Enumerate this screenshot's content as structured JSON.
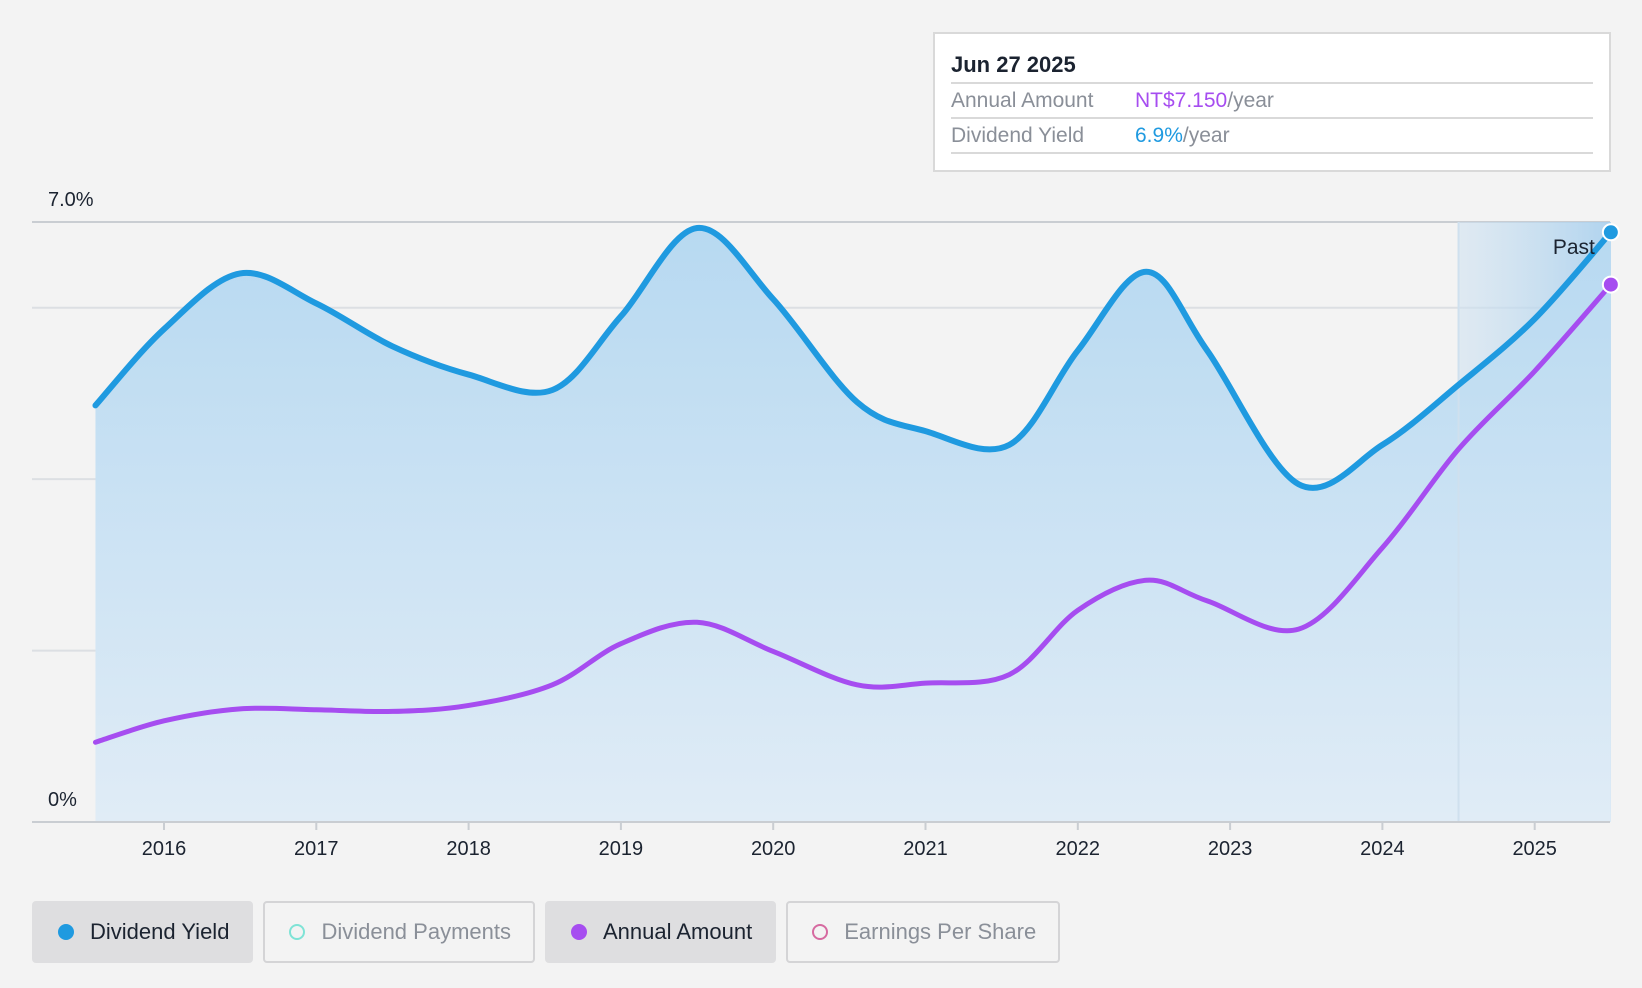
{
  "tooltip": {
    "date": "Jun 27 2025",
    "rows": [
      {
        "label": "Annual Amount",
        "value": "NT$7.150",
        "unit": "/year",
        "color": "#a64df0"
      },
      {
        "label": "Dividend Yield",
        "value": "6.9%",
        "unit": "/year",
        "color": "#1f9ae0"
      }
    ]
  },
  "chart_data": {
    "type": "area",
    "x_ticks": [
      "2016",
      "2017",
      "2018",
      "2019",
      "2020",
      "2021",
      "2022",
      "2023",
      "2024",
      "2025"
    ],
    "y_ticks": [
      "0%",
      "7.0%"
    ],
    "ylim": [
      0,
      7.0
    ],
    "xlim": [
      2015.55,
      2025.5
    ],
    "grid": true,
    "past_region_start": 2024.5,
    "past_label": "Past",
    "series": [
      {
        "name": "Dividend Yield",
        "color": "#1f9ae0",
        "fill": true,
        "points": [
          [
            2015.55,
            4.86
          ],
          [
            2016.0,
            5.75
          ],
          [
            2016.5,
            6.4
          ],
          [
            2017.0,
            6.05
          ],
          [
            2017.5,
            5.55
          ],
          [
            2018.0,
            5.22
          ],
          [
            2018.55,
            5.04
          ],
          [
            2019.0,
            5.9
          ],
          [
            2019.5,
            6.93
          ],
          [
            2020.0,
            6.1
          ],
          [
            2020.55,
            4.9
          ],
          [
            2021.0,
            4.56
          ],
          [
            2021.55,
            4.4
          ],
          [
            2022.0,
            5.5
          ],
          [
            2022.45,
            6.42
          ],
          [
            2022.85,
            5.5
          ],
          [
            2023.45,
            3.94
          ],
          [
            2024.0,
            4.4
          ],
          [
            2024.5,
            5.1
          ],
          [
            2025.0,
            5.87
          ],
          [
            2025.5,
            6.88
          ]
        ]
      },
      {
        "name": "Annual Amount",
        "color": "#a64df0",
        "fill": false,
        "points": [
          [
            2015.55,
            0.93
          ],
          [
            2016.0,
            1.18
          ],
          [
            2016.5,
            1.32
          ],
          [
            2017.0,
            1.31
          ],
          [
            2017.5,
            1.29
          ],
          [
            2018.0,
            1.36
          ],
          [
            2018.55,
            1.6
          ],
          [
            2019.0,
            2.08
          ],
          [
            2019.5,
            2.33
          ],
          [
            2020.0,
            1.99
          ],
          [
            2020.55,
            1.6
          ],
          [
            2021.0,
            1.62
          ],
          [
            2021.55,
            1.72
          ],
          [
            2022.0,
            2.47
          ],
          [
            2022.45,
            2.82
          ],
          [
            2022.85,
            2.58
          ],
          [
            2023.45,
            2.25
          ],
          [
            2024.0,
            3.2
          ],
          [
            2024.5,
            4.35
          ],
          [
            2025.0,
            5.26
          ],
          [
            2025.5,
            6.27
          ]
        ]
      }
    ]
  },
  "legend": [
    {
      "label": "Dividend Yield",
      "state": "active",
      "dot": "filled-blue"
    },
    {
      "label": "Dividend Payments",
      "state": "inactive",
      "dot": "hollow-teal"
    },
    {
      "label": "Annual Amount",
      "state": "active",
      "dot": "filled-purple"
    },
    {
      "label": "Earnings Per Share",
      "state": "inactive",
      "dot": "hollow-pink"
    }
  ]
}
